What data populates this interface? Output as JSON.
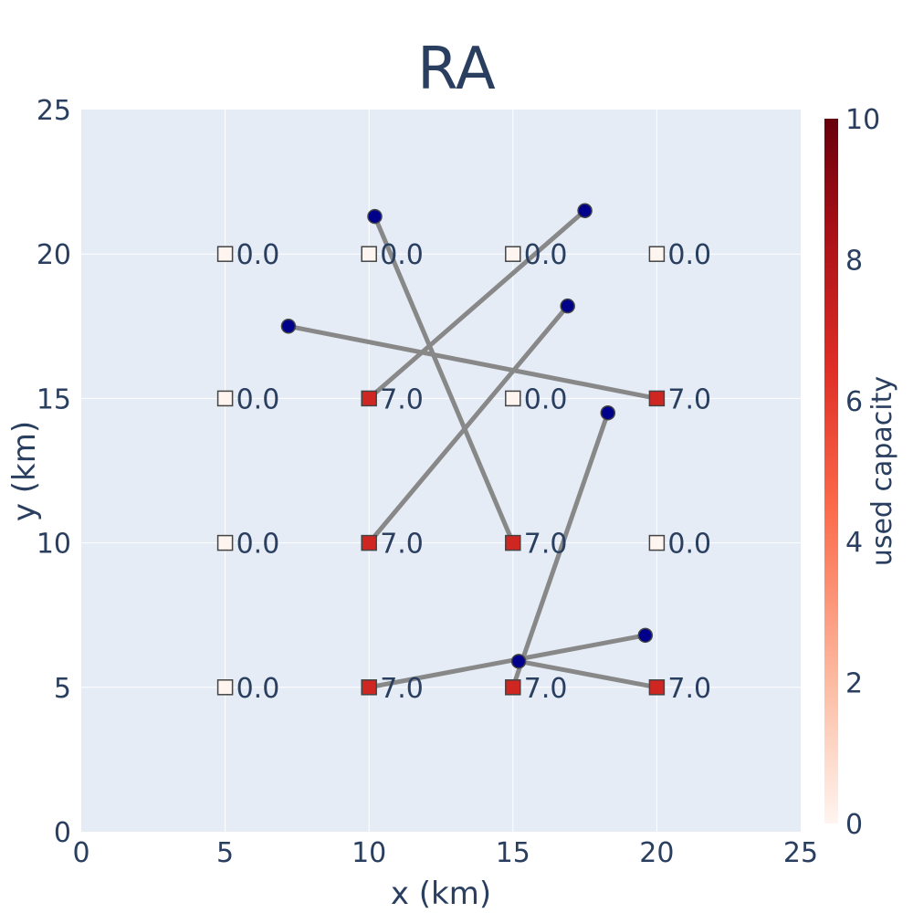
{
  "chart_data": {
    "type": "scatter",
    "title": "RA",
    "xlabel": "x (km)",
    "ylabel": "y (km)",
    "xlim": [
      0,
      25
    ],
    "ylim": [
      0,
      25
    ],
    "xticks": [
      "0",
      "5",
      "10",
      "15",
      "20",
      "25"
    ],
    "yticks": [
      "0",
      "5",
      "10",
      "15",
      "20",
      "25"
    ],
    "grid": true,
    "plot_background": "#e5ecf6",
    "colorbar": {
      "title": "used capacity",
      "range": [
        0,
        10
      ],
      "ticks": [
        "0",
        "2",
        "4",
        "6",
        "8",
        "10"
      ],
      "colorscale": [
        "#fff5f0",
        "#fcbba1",
        "#fb6a4a",
        "#de2d26",
        "#a50f15",
        "#67000d"
      ]
    },
    "facilities": [
      {
        "x": 5,
        "y": 5,
        "value": 0,
        "label": "0.0"
      },
      {
        "x": 10,
        "y": 5,
        "value": 7,
        "label": "7.0"
      },
      {
        "x": 15,
        "y": 5,
        "value": 7,
        "label": "7.0"
      },
      {
        "x": 20,
        "y": 5,
        "value": 7,
        "label": "7.0"
      },
      {
        "x": 5,
        "y": 10,
        "value": 0,
        "label": "0.0"
      },
      {
        "x": 10,
        "y": 10,
        "value": 7,
        "label": "7.0"
      },
      {
        "x": 15,
        "y": 10,
        "value": 7,
        "label": "7.0"
      },
      {
        "x": 20,
        "y": 10,
        "value": 0,
        "label": "0.0"
      },
      {
        "x": 5,
        "y": 15,
        "value": 0,
        "label": "0.0"
      },
      {
        "x": 10,
        "y": 15,
        "value": 7,
        "label": "7.0"
      },
      {
        "x": 15,
        "y": 15,
        "value": 0,
        "label": "0.0"
      },
      {
        "x": 20,
        "y": 15,
        "value": 7,
        "label": "7.0"
      },
      {
        "x": 5,
        "y": 20,
        "value": 0,
        "label": "0.0"
      },
      {
        "x": 10,
        "y": 20,
        "value": 0,
        "label": "0.0"
      },
      {
        "x": 15,
        "y": 20,
        "value": 0,
        "label": "0.0"
      },
      {
        "x": 20,
        "y": 20,
        "value": 0,
        "label": "0.0"
      }
    ],
    "demand_points": [
      {
        "x": 10.2,
        "y": 21.3
      },
      {
        "x": 17.5,
        "y": 21.5
      },
      {
        "x": 7.2,
        "y": 17.5
      },
      {
        "x": 16.9,
        "y": 18.2
      },
      {
        "x": 18.3,
        "y": 14.5
      },
      {
        "x": 19.6,
        "y": 6.8
      },
      {
        "x": 15.2,
        "y": 5.9
      }
    ],
    "assignments": [
      {
        "from": [
          10.2,
          21.3
        ],
        "to": [
          15,
          10
        ]
      },
      {
        "from": [
          17.5,
          21.5
        ],
        "to": [
          10,
          15
        ]
      },
      {
        "from": [
          7.2,
          17.5
        ],
        "to": [
          20,
          15
        ]
      },
      {
        "from": [
          16.9,
          18.2
        ],
        "to": [
          10,
          10
        ]
      },
      {
        "from": [
          18.3,
          14.5
        ],
        "to": [
          15,
          5
        ]
      },
      {
        "from": [
          19.6,
          6.8
        ],
        "to": [
          10,
          5
        ]
      },
      {
        "from": [
          15.2,
          5.9
        ],
        "to": [
          20,
          5
        ]
      }
    ],
    "colors": {
      "assignment_line": "#888888",
      "demand_marker": "#00008b",
      "marker_outline": "#444444",
      "grid": "#ffffff",
      "text": "#2a3f5f"
    }
  }
}
